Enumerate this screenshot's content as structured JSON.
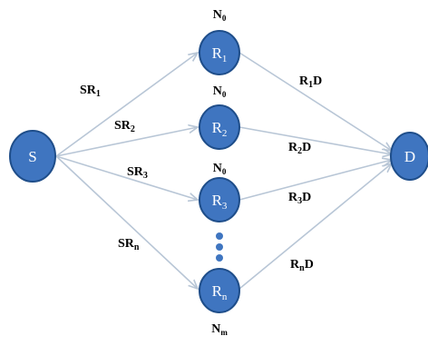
{
  "colors": {
    "node_fill": "#3f75c0",
    "node_stroke": "#1f4e8a",
    "link": "#b8c6d6"
  },
  "nodes": {
    "source": {
      "label": "S"
    },
    "destination": {
      "label": "D"
    },
    "relays": [
      {
        "label": "R",
        "sub": "1",
        "noise": "N",
        "noise_sub": "0"
      },
      {
        "label": "R",
        "sub": "2",
        "noise": "N",
        "noise_sub": "0"
      },
      {
        "label": "R",
        "sub": "3",
        "noise": "N",
        "noise_sub": "0"
      },
      {
        "label": "R",
        "sub": "n",
        "noise": "N",
        "noise_sub": "m"
      }
    ]
  },
  "source_links": [
    {
      "main": "SR",
      "sub": "1"
    },
    {
      "main": "SR",
      "sub": "2"
    },
    {
      "main": "SR",
      "sub": "3"
    },
    {
      "main": "SR",
      "sub": "n"
    }
  ],
  "dest_links": [
    {
      "main": "R",
      "sub": "1",
      "tail": "D"
    },
    {
      "main": "R",
      "sub": "2",
      "tail": "D"
    },
    {
      "main": "R",
      "sub": "3",
      "tail": "D"
    },
    {
      "main": "R",
      "sub": "n",
      "tail": "D"
    }
  ]
}
